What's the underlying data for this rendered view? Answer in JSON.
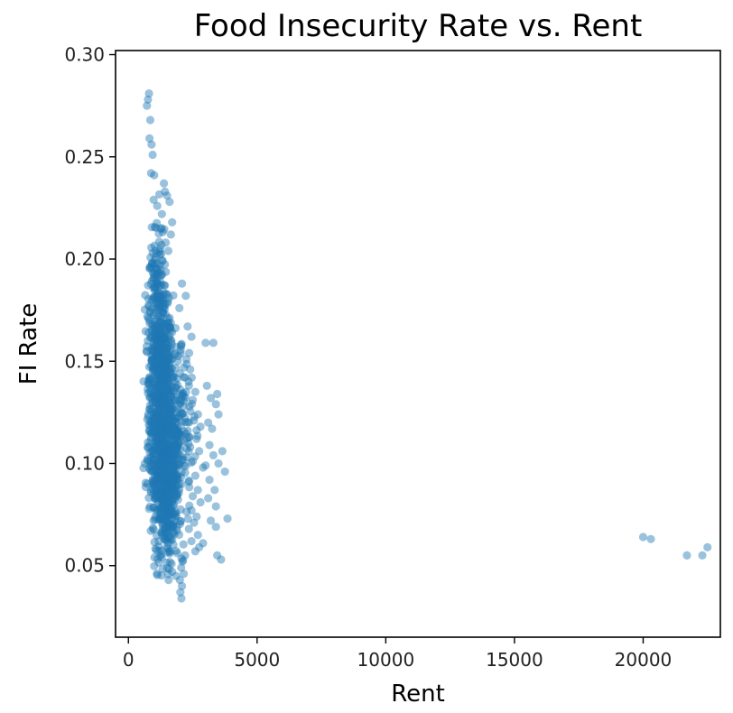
{
  "chart_data": {
    "type": "scatter",
    "title": "Food Insecurity Rate vs. Rent",
    "xlabel": "Rent",
    "ylabel": "FI Rate",
    "xlim": [
      -500,
      23000
    ],
    "ylim": [
      0.015,
      0.302
    ],
    "xticks": [
      0,
      5000,
      10000,
      15000,
      20000
    ],
    "yticks": [
      0.05,
      0.1,
      0.15,
      0.2,
      0.25,
      0.3
    ],
    "xtick_labels": [
      "0",
      "5000",
      "10000",
      "15000",
      "20000"
    ],
    "ytick_labels": [
      "0.05",
      "0.10",
      "0.15",
      "0.20",
      "0.25",
      "0.30"
    ],
    "grid": false,
    "marker_color": "#1f77b4",
    "marker_alpha": 0.45,
    "series": [
      {
        "points": [
          [
            800,
            0.281
          ],
          [
            760,
            0.278
          ],
          [
            720,
            0.275
          ],
          [
            850,
            0.268
          ],
          [
            820,
            0.259
          ],
          [
            900,
            0.256
          ],
          [
            940,
            0.251
          ],
          [
            880,
            0.242
          ],
          [
            1000,
            0.241
          ],
          [
            1380,
            0.237
          ],
          [
            1420,
            0.233
          ],
          [
            1500,
            0.231
          ],
          [
            980,
            0.229
          ],
          [
            1120,
            0.226
          ],
          [
            1600,
            0.228
          ],
          [
            1300,
            0.222
          ],
          [
            1700,
            0.218
          ],
          [
            1650,
            0.212
          ],
          [
            1450,
            0.208
          ],
          [
            1550,
            0.204
          ],
          [
            2080,
            0.188
          ],
          [
            2230,
            0.182
          ],
          [
            1980,
            0.176
          ],
          [
            2300,
            0.167
          ],
          [
            2450,
            0.162
          ],
          [
            2050,
            0.158
          ],
          [
            2250,
            0.151
          ],
          [
            2400,
            0.146
          ],
          [
            2200,
            0.142
          ],
          [
            2350,
            0.138
          ],
          [
            2600,
            0.135
          ],
          [
            2500,
            0.131
          ],
          [
            2150,
            0.128
          ],
          [
            2700,
            0.124
          ],
          [
            2550,
            0.121
          ],
          [
            2800,
            0.118
          ],
          [
            2300,
            0.116
          ],
          [
            2650,
            0.112
          ],
          [
            2400,
            0.108
          ],
          [
            2750,
            0.106
          ],
          [
            2500,
            0.101
          ],
          [
            2900,
            0.098
          ],
          [
            2600,
            0.094
          ],
          [
            2350,
            0.091
          ],
          [
            2700,
            0.087
          ],
          [
            2500,
            0.084
          ],
          [
            2800,
            0.081
          ],
          [
            2450,
            0.077
          ],
          [
            2650,
            0.074
          ],
          [
            2550,
            0.071
          ],
          [
            2350,
            0.068
          ],
          [
            2700,
            0.065
          ],
          [
            2450,
            0.062
          ],
          [
            2750,
            0.059
          ],
          [
            2600,
            0.057
          ],
          [
            2900,
            0.061
          ],
          [
            2200,
            0.055
          ],
          [
            2100,
            0.052
          ],
          [
            2050,
            0.049
          ],
          [
            2150,
            0.046
          ],
          [
            2000,
            0.043
          ],
          [
            2080,
            0.04
          ],
          [
            2020,
            0.037
          ],
          [
            2060,
            0.034
          ],
          [
            1560,
            0.043
          ],
          [
            1700,
            0.047
          ],
          [
            1850,
            0.045
          ],
          [
            3000,
            0.159
          ],
          [
            3300,
            0.159
          ],
          [
            3050,
            0.138
          ],
          [
            3200,
            0.132
          ],
          [
            3450,
            0.134
          ],
          [
            3400,
            0.129
          ],
          [
            3500,
            0.124
          ],
          [
            3100,
            0.12
          ],
          [
            3250,
            0.117
          ],
          [
            3150,
            0.109
          ],
          [
            3300,
            0.104
          ],
          [
            3650,
            0.106
          ],
          [
            3500,
            0.1
          ],
          [
            3750,
            0.096
          ],
          [
            3150,
            0.092
          ],
          [
            3350,
            0.087
          ],
          [
            3100,
            0.083
          ],
          [
            3400,
            0.079
          ],
          [
            3200,
            0.072
          ],
          [
            3400,
            0.069
          ],
          [
            3450,
            0.055
          ],
          [
            3600,
            0.053
          ],
          [
            3850,
            0.073
          ],
          [
            3000,
            0.099
          ],
          [
            20000,
            0.064
          ],
          [
            20300,
            0.063
          ],
          [
            21700,
            0.055
          ],
          [
            22300,
            0.055
          ],
          [
            22500,
            0.059
          ]
        ],
        "dense_cloud": [
          {
            "x": 1250,
            "y": 0.125,
            "sx": 240,
            "sy": 0.028,
            "n": 700
          },
          {
            "x": 1150,
            "y": 0.165,
            "sx": 190,
            "sy": 0.016,
            "n": 160
          },
          {
            "x": 1450,
            "y": 0.085,
            "sx": 260,
            "sy": 0.014,
            "n": 240
          },
          {
            "x": 1100,
            "y": 0.195,
            "sx": 160,
            "sy": 0.012,
            "n": 60
          },
          {
            "x": 1650,
            "y": 0.105,
            "sx": 280,
            "sy": 0.025,
            "n": 200
          },
          {
            "x": 1900,
            "y": 0.112,
            "sx": 300,
            "sy": 0.022,
            "n": 140
          }
        ]
      }
    ]
  }
}
